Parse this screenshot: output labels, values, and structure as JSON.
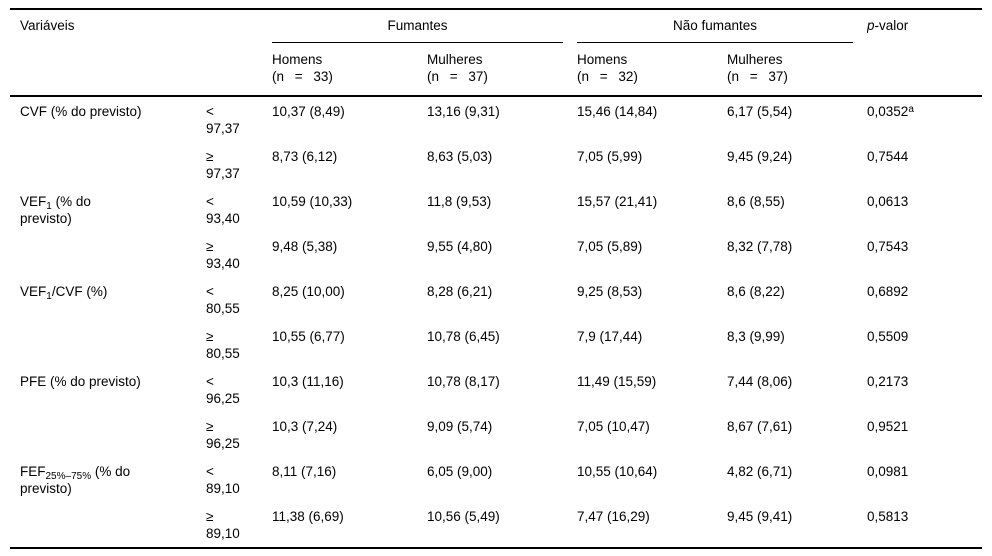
{
  "table": {
    "header": {
      "variables_label": "Variáveis",
      "group1_label": "Fumantes",
      "group2_label": "Não fumantes",
      "pvalue_italic": "p",
      "pvalue_rest": "-valor",
      "subcols": [
        {
          "label": "Homens",
          "n": "(n = 33)"
        },
        {
          "label": "Mulheres",
          "n": "(n = 37)"
        },
        {
          "label": "Homens",
          "n": "(n = 32)"
        },
        {
          "label": "Mulheres",
          "n": "(n = 37)"
        }
      ]
    },
    "rows": [
      {
        "name_parts": [
          {
            "t": "CVF (% do previsto)"
          }
        ],
        "subrows": [
          {
            "sign": "<",
            "cutoff": "97,37",
            "values": [
              "10,37 (8,49)",
              "13,16 (9,31)",
              "15,46 (14,84)",
              "6,17 (5,54)"
            ],
            "p": "0,0352",
            "p_sup": "a"
          },
          {
            "sign": "≥",
            "cutoff": "97,37",
            "values": [
              "8,73 (6,12)",
              "8,63 (5,03)",
              "7,05 (5,99)",
              "9,45 (9,24)"
            ],
            "p": "0,7544",
            "p_sup": ""
          }
        ]
      },
      {
        "name_parts": [
          {
            "t": "VEF"
          },
          {
            "t": "1",
            "sub": true
          },
          {
            "t": " (% do"
          },
          {
            "br": true
          },
          {
            "t": "previsto)"
          }
        ],
        "subrows": [
          {
            "sign": "<",
            "cutoff": "93,40",
            "values": [
              "10,59 (10,33)",
              "11,8 (9,53)",
              "15,57 (21,41)",
              "8,6 (8,55)"
            ],
            "p": "0,0613",
            "p_sup": ""
          },
          {
            "sign": "≥",
            "cutoff": "93,40",
            "values": [
              "9,48 (5,38)",
              "9,55 (4,80)",
              "7,05 (5,89)",
              "8,32 (7,78)"
            ],
            "p": "0,7543",
            "p_sup": ""
          }
        ]
      },
      {
        "name_parts": [
          {
            "t": "VEF"
          },
          {
            "t": "1",
            "sub": true
          },
          {
            "t": "/CVF (%)"
          }
        ],
        "subrows": [
          {
            "sign": "<",
            "cutoff": "80,55",
            "values": [
              "8,25 (10,00)",
              "8,28 (6,21)",
              "9,25 (8,53)",
              "8,6 (8,22)"
            ],
            "p": "0,6892",
            "p_sup": ""
          },
          {
            "sign": "≥",
            "cutoff": "80,55",
            "values": [
              "10,55 (6,77)",
              "10,78 (6,45)",
              "7,9 (17,44)",
              "8,3 (9,99)"
            ],
            "p": "0,5509",
            "p_sup": ""
          }
        ]
      },
      {
        "name_parts": [
          {
            "t": "PFE (% do previsto)"
          }
        ],
        "subrows": [
          {
            "sign": "<",
            "cutoff": "96,25",
            "values": [
              "10,3 (11,16)",
              "10,78 (8,17)",
              "11,49 (15,59)",
              "7,44 (8,06)"
            ],
            "p": "0,2173",
            "p_sup": ""
          },
          {
            "sign": "≥",
            "cutoff": "96,25",
            "values": [
              "10,3 (7,24)",
              "9,09 (5,74)",
              "7,05 (10,47)",
              "8,67 (7,61)"
            ],
            "p": "0,9521",
            "p_sup": ""
          }
        ]
      },
      {
        "name_parts": [
          {
            "t": "FEF"
          },
          {
            "t": "25%–75%",
            "sub": true
          },
          {
            "t": " (% do"
          },
          {
            "br": true
          },
          {
            "t": "previsto)"
          }
        ],
        "subrows": [
          {
            "sign": "<",
            "cutoff": "89,10",
            "values": [
              "8,11 (7,16)",
              "6,05 (9,00)",
              "10,55 (10,64)",
              "4,82 (6,71)"
            ],
            "p": "0,0981",
            "p_sup": ""
          },
          {
            "sign": "≥",
            "cutoff": "89,10",
            "values": [
              "11,38 (6,69)",
              "10,56 (5,49)",
              "7,47 (16,29)",
              "9,45 (9,41)"
            ],
            "p": "0,5813",
            "p_sup": ""
          }
        ]
      }
    ]
  }
}
